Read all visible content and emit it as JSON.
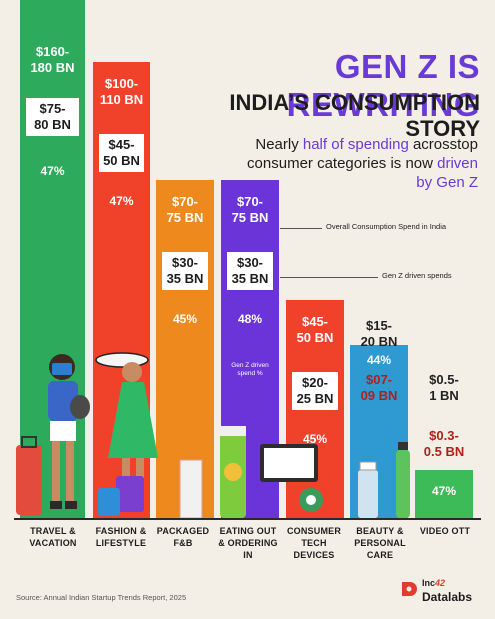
{
  "title_line1": "GEN Z IS REWRITING",
  "title_line2": "INDIA’S CONSUMPTION STORY",
  "subtitle": {
    "part1": "Nearly ",
    "highlight1": "half of spending",
    "part2": " acrosstop consumer categories is now ",
    "highlight2": "driven by Gen Z"
  },
  "legend": {
    "overall": "Overall Consumption Spend in India",
    "genz": "Gen  Z driven spends",
    "share": "Gen  Z driven spend %"
  },
  "source": "Source: Annual Indian Startup Trends Report, 2025",
  "brand": {
    "inc": "Inc",
    "mark": "42",
    "datalabs": "Datalabs"
  },
  "colors": {
    "background": "#f3efe6",
    "title_purple": "#6a3ad6",
    "bar_colors": [
      "#2daa5c",
      "#f0422b",
      "#ee8a1d",
      "#6a34d9",
      "#f0422b",
      "#2f9ad2",
      "#3dbb59"
    ]
  },
  "chart_data": {
    "type": "bar",
    "title": "GEN Z IS REWRITING INDIA’S CONSUMPTION STORY",
    "units": "USD BN",
    "categories": [
      "TRAVEL & VACATION",
      "FASHION & LIFESTYLE",
      "PACKAGED F&B",
      "EATING OUT & ORDERING IN",
      "CONSUMER TECH DEVICES",
      "BEAUTY & PERSONAL CARE",
      "VIDEO OTT"
    ],
    "series": [
      {
        "name": "Overall Consumption Spend in India",
        "values": [
          170,
          105,
          72.5,
          72.5,
          47.5,
          17.5,
          0.75
        ]
      },
      {
        "name": "Gen  Z driven spends",
        "values": [
          77.5,
          47.5,
          32.5,
          32.5,
          22.5,
          8,
          0.4
        ]
      },
      {
        "name": "Gen  Z driven spend %",
        "values": [
          47,
          47,
          45,
          48,
          45,
          44,
          47
        ]
      }
    ],
    "bars": [
      {
        "category": "TRAVEL &\nVACATION",
        "overall": "$160-\n180 BN",
        "genz": "$75-\n80 BN",
        "pct": "47%"
      },
      {
        "category": "FASHION &\nLIFESTYLE",
        "overall": "$100-\n110 BN",
        "genz": "$45-\n50 BN",
        "pct": "47%"
      },
      {
        "category": "PACKAGED\nF&B",
        "overall": "$70-\n75 BN",
        "genz": "$30-\n35 BN",
        "pct": "45%"
      },
      {
        "category": "EATING OUT\n& ORDERING\nIN",
        "overall": "$70-\n75 BN",
        "genz": "$30-\n35 BN",
        "pct": "48%"
      },
      {
        "category": "CONSUMER\nTECH\nDEVICES",
        "overall": "$45-\n50 BN",
        "genz": "$20-\n25 BN",
        "pct": "45%"
      },
      {
        "category": "BEAUTY &\nPERSONAL\nCARE",
        "overall": "$15-\n20 BN",
        "genz": "$07-\n09 BN",
        "pct": "44%"
      },
      {
        "category": "VIDEO OTT",
        "overall": "$0.5-\n1 BN",
        "genz": "$0.3-\n0.5 BN",
        "pct": "47%"
      }
    ]
  }
}
